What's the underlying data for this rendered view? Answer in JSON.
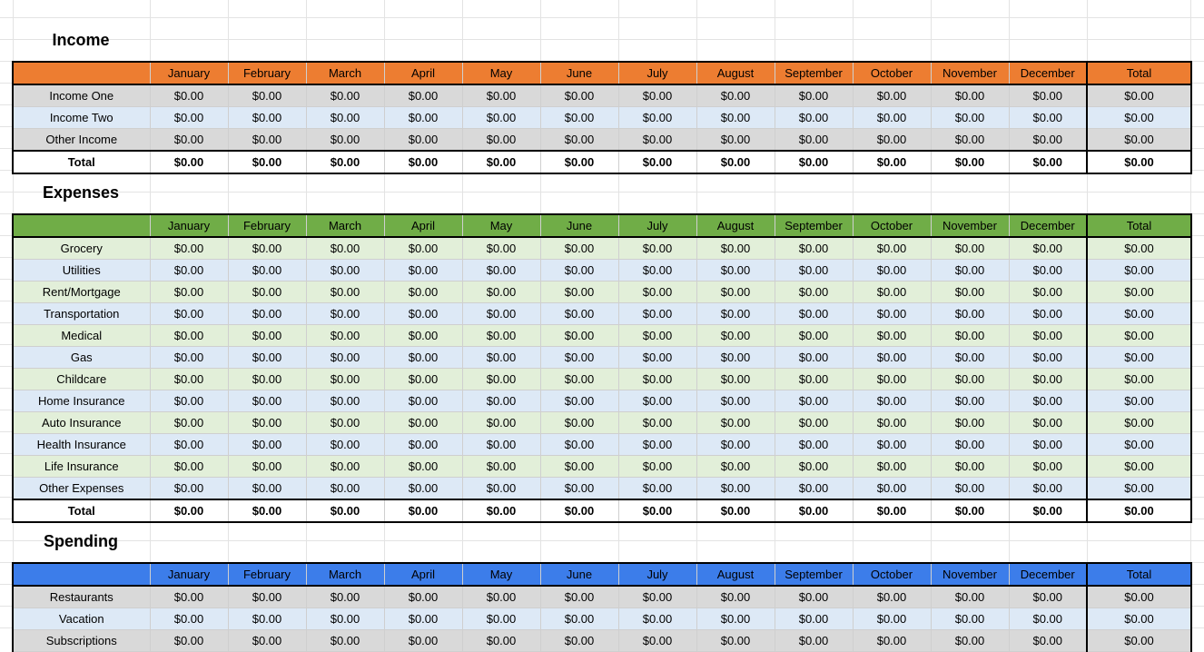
{
  "months": [
    "January",
    "February",
    "March",
    "April",
    "May",
    "June",
    "July",
    "August",
    "September",
    "October",
    "November",
    "December"
  ],
  "total_label": "Total",
  "colors": {
    "income_header": "#ed7d31",
    "expenses_header": "#70ad47",
    "spending_header": "#3c7dea",
    "row_gray": "#d9d9d9",
    "row_blue": "#dde9f6",
    "row_green": "#e2efd9"
  },
  "income": {
    "title": "Income",
    "rows": [
      {
        "label": "Income One",
        "values": [
          "$0.00",
          "$0.00",
          "$0.00",
          "$0.00",
          "$0.00",
          "$0.00",
          "$0.00",
          "$0.00",
          "$0.00",
          "$0.00",
          "$0.00",
          "$0.00"
        ],
        "total": "$0.00",
        "style": "gray"
      },
      {
        "label": "Income Two",
        "values": [
          "$0.00",
          "$0.00",
          "$0.00",
          "$0.00",
          "$0.00",
          "$0.00",
          "$0.00",
          "$0.00",
          "$0.00",
          "$0.00",
          "$0.00",
          "$0.00"
        ],
        "total": "$0.00",
        "style": "blue"
      },
      {
        "label": "Other Income",
        "values": [
          "$0.00",
          "$0.00",
          "$0.00",
          "$0.00",
          "$0.00",
          "$0.00",
          "$0.00",
          "$0.00",
          "$0.00",
          "$0.00",
          "$0.00",
          "$0.00"
        ],
        "total": "$0.00",
        "style": "gray"
      }
    ],
    "total_row": {
      "label": "Total",
      "values": [
        "$0.00",
        "$0.00",
        "$0.00",
        "$0.00",
        "$0.00",
        "$0.00",
        "$0.00",
        "$0.00",
        "$0.00",
        "$0.00",
        "$0.00",
        "$0.00"
      ],
      "total": "$0.00"
    }
  },
  "expenses": {
    "title": "Expenses",
    "rows": [
      {
        "label": "Grocery",
        "values": [
          "$0.00",
          "$0.00",
          "$0.00",
          "$0.00",
          "$0.00",
          "$0.00",
          "$0.00",
          "$0.00",
          "$0.00",
          "$0.00",
          "$0.00",
          "$0.00"
        ],
        "total": "$0.00",
        "style": "green"
      },
      {
        "label": "Utilities",
        "values": [
          "$0.00",
          "$0.00",
          "$0.00",
          "$0.00",
          "$0.00",
          "$0.00",
          "$0.00",
          "$0.00",
          "$0.00",
          "$0.00",
          "$0.00",
          "$0.00"
        ],
        "total": "$0.00",
        "style": "blue"
      },
      {
        "label": "Rent/Mortgage",
        "values": [
          "$0.00",
          "$0.00",
          "$0.00",
          "$0.00",
          "$0.00",
          "$0.00",
          "$0.00",
          "$0.00",
          "$0.00",
          "$0.00",
          "$0.00",
          "$0.00"
        ],
        "total": "$0.00",
        "style": "green"
      },
      {
        "label": "Transportation",
        "values": [
          "$0.00",
          "$0.00",
          "$0.00",
          "$0.00",
          "$0.00",
          "$0.00",
          "$0.00",
          "$0.00",
          "$0.00",
          "$0.00",
          "$0.00",
          "$0.00"
        ],
        "total": "$0.00",
        "style": "blue"
      },
      {
        "label": "Medical",
        "values": [
          "$0.00",
          "$0.00",
          "$0.00",
          "$0.00",
          "$0.00",
          "$0.00",
          "$0.00",
          "$0.00",
          "$0.00",
          "$0.00",
          "$0.00",
          "$0.00"
        ],
        "total": "$0.00",
        "style": "green"
      },
      {
        "label": "Gas",
        "values": [
          "$0.00",
          "$0.00",
          "$0.00",
          "$0.00",
          "$0.00",
          "$0.00",
          "$0.00",
          "$0.00",
          "$0.00",
          "$0.00",
          "$0.00",
          "$0.00"
        ],
        "total": "$0.00",
        "style": "blue"
      },
      {
        "label": "Childcare",
        "values": [
          "$0.00",
          "$0.00",
          "$0.00",
          "$0.00",
          "$0.00",
          "$0.00",
          "$0.00",
          "$0.00",
          "$0.00",
          "$0.00",
          "$0.00",
          "$0.00"
        ],
        "total": "$0.00",
        "style": "green"
      },
      {
        "label": "Home Insurance",
        "values": [
          "$0.00",
          "$0.00",
          "$0.00",
          "$0.00",
          "$0.00",
          "$0.00",
          "$0.00",
          "$0.00",
          "$0.00",
          "$0.00",
          "$0.00",
          "$0.00"
        ],
        "total": "$0.00",
        "style": "blue"
      },
      {
        "label": "Auto Insurance",
        "values": [
          "$0.00",
          "$0.00",
          "$0.00",
          "$0.00",
          "$0.00",
          "$0.00",
          "$0.00",
          "$0.00",
          "$0.00",
          "$0.00",
          "$0.00",
          "$0.00"
        ],
        "total": "$0.00",
        "style": "green"
      },
      {
        "label": "Health Insurance",
        "values": [
          "$0.00",
          "$0.00",
          "$0.00",
          "$0.00",
          "$0.00",
          "$0.00",
          "$0.00",
          "$0.00",
          "$0.00",
          "$0.00",
          "$0.00",
          "$0.00"
        ],
        "total": "$0.00",
        "style": "blue"
      },
      {
        "label": "Life Insurance",
        "values": [
          "$0.00",
          "$0.00",
          "$0.00",
          "$0.00",
          "$0.00",
          "$0.00",
          "$0.00",
          "$0.00",
          "$0.00",
          "$0.00",
          "$0.00",
          "$0.00"
        ],
        "total": "$0.00",
        "style": "green"
      },
      {
        "label": "Other Expenses",
        "values": [
          "$0.00",
          "$0.00",
          "$0.00",
          "$0.00",
          "$0.00",
          "$0.00",
          "$0.00",
          "$0.00",
          "$0.00",
          "$0.00",
          "$0.00",
          "$0.00"
        ],
        "total": "$0.00",
        "style": "blue"
      }
    ],
    "total_row": {
      "label": "Total",
      "values": [
        "$0.00",
        "$0.00",
        "$0.00",
        "$0.00",
        "$0.00",
        "$0.00",
        "$0.00",
        "$0.00",
        "$0.00",
        "$0.00",
        "$0.00",
        "$0.00"
      ],
      "total": "$0.00"
    }
  },
  "spending": {
    "title": "Spending",
    "rows": [
      {
        "label": "Restaurants",
        "values": [
          "$0.00",
          "$0.00",
          "$0.00",
          "$0.00",
          "$0.00",
          "$0.00",
          "$0.00",
          "$0.00",
          "$0.00",
          "$0.00",
          "$0.00",
          "$0.00"
        ],
        "total": "$0.00",
        "style": "gray"
      },
      {
        "label": "Vacation",
        "values": [
          "$0.00",
          "$0.00",
          "$0.00",
          "$0.00",
          "$0.00",
          "$0.00",
          "$0.00",
          "$0.00",
          "$0.00",
          "$0.00",
          "$0.00",
          "$0.00"
        ],
        "total": "$0.00",
        "style": "blue"
      },
      {
        "label": "Subscriptions",
        "values": [
          "$0.00",
          "$0.00",
          "$0.00",
          "$0.00",
          "$0.00",
          "$0.00",
          "$0.00",
          "$0.00",
          "$0.00",
          "$0.00",
          "$0.00",
          "$0.00"
        ],
        "total": "$0.00",
        "style": "gray"
      }
    ]
  }
}
